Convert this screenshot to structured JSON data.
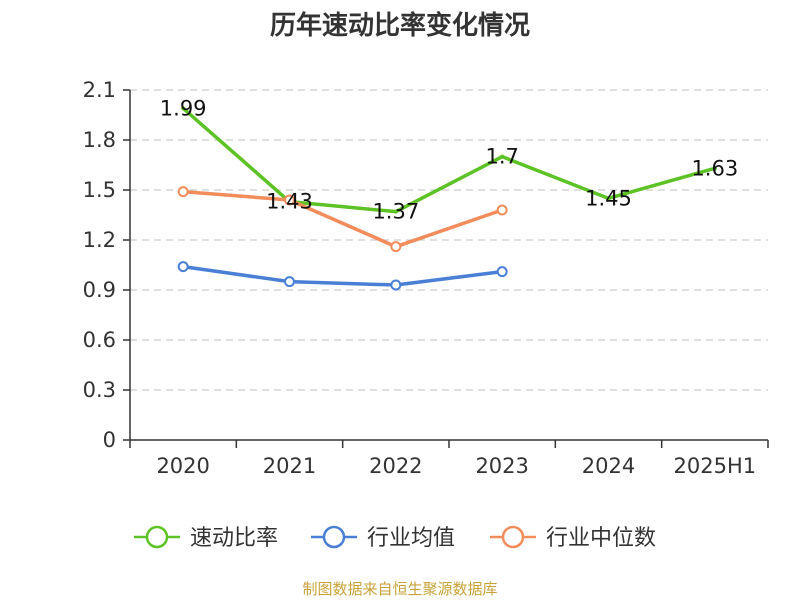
{
  "chart_data": {
    "type": "line",
    "title": "历年速动比率变化情况",
    "categories": [
      "2020",
      "2021",
      "2022",
      "2023",
      "2024",
      "2025H1"
    ],
    "ylim": [
      0,
      2.1
    ],
    "yticks": [
      "0",
      "0.3",
      "0.6",
      "0.9",
      "1.2",
      "1.5",
      "1.8",
      "2.1"
    ],
    "grid": true,
    "legend_position": "bottom",
    "series": [
      {
        "name": "速动比率",
        "color": "#5cc225",
        "values": [
          1.99,
          1.43,
          1.37,
          1.7,
          1.45,
          1.63
        ],
        "labels": [
          "1.99",
          "1.43",
          "1.37",
          "1.7",
          "1.45",
          "1.63"
        ],
        "markers": false
      },
      {
        "name": "行业均值",
        "color": "#4a7fd6",
        "values": [
          1.04,
          0.95,
          0.93,
          1.01,
          null,
          null
        ],
        "markers": true
      },
      {
        "name": "行业中位数",
        "color": "#f28c5b",
        "values": [
          1.49,
          1.44,
          1.16,
          1.38,
          null,
          null
        ],
        "markers": true
      }
    ]
  },
  "source": "制图数据来自恒生聚源数据库"
}
